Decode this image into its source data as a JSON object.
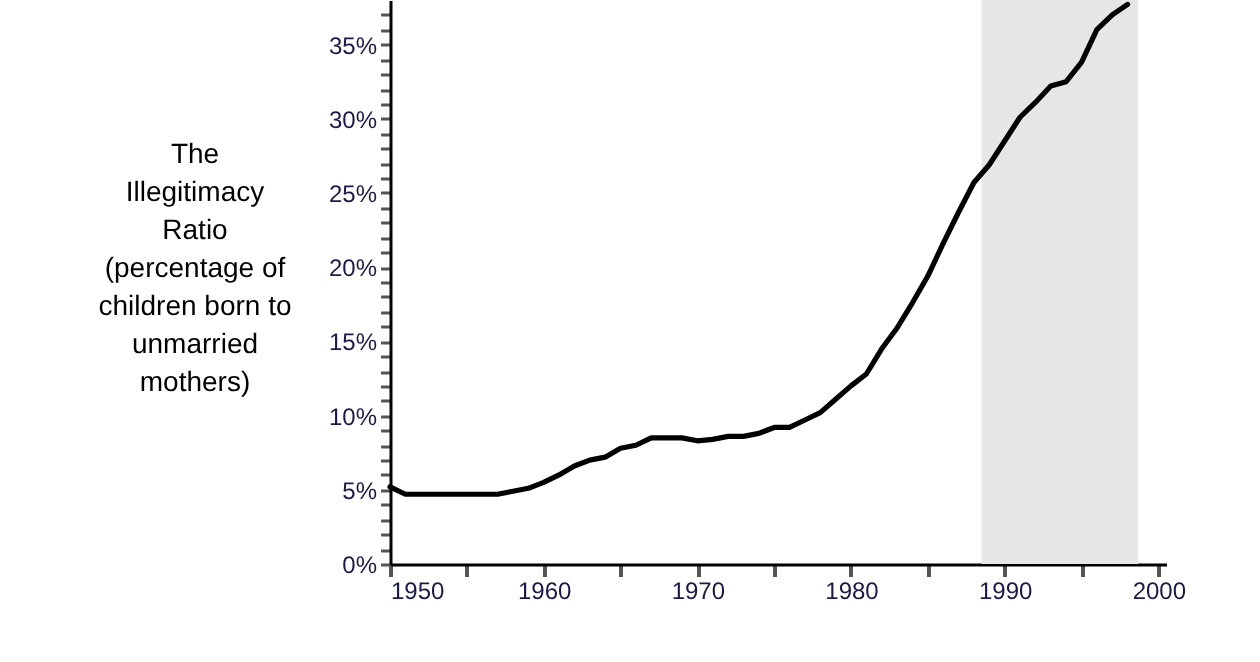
{
  "chart_data": {
    "type": "line",
    "ylabel": "The\nIllegitimacy\nRatio\n(percentage of\nchildren born to\nunmarried\nmothers)",
    "x": [
      1950,
      1951,
      1952,
      1953,
      1954,
      1955,
      1956,
      1957,
      1958,
      1959,
      1960,
      1961,
      1962,
      1963,
      1964,
      1965,
      1966,
      1967,
      1968,
      1969,
      1970,
      1971,
      1972,
      1973,
      1974,
      1975,
      1976,
      1977,
      1978,
      1979,
      1980,
      1981,
      1982,
      1983,
      1984,
      1985,
      1986,
      1987,
      1988,
      1989,
      1990,
      1991,
      1992,
      1993,
      1994,
      1995,
      1996,
      1997,
      1998
    ],
    "series": [
      {
        "color": "#000000",
        "values": [
          5.2,
          4.7,
          4.7,
          4.7,
          4.7,
          4.7,
          4.7,
          4.7,
          4.9,
          5.1,
          5.5,
          6.0,
          6.6,
          7.0,
          7.2,
          7.8,
          8.0,
          8.5,
          8.5,
          8.5,
          8.3,
          8.4,
          8.6,
          8.6,
          8.8,
          9.2,
          9.2,
          9.7,
          10.2,
          11.1,
          12.0,
          12.8,
          14.5,
          15.9,
          17.6,
          19.4,
          21.6,
          23.7,
          25.7,
          26.9,
          28.5,
          30.1,
          31.1,
          32.2,
          32.5,
          33.8,
          36.0,
          37.0,
          37.7
        ]
      }
    ],
    "xlim": [
      1950,
      2000.5
    ],
    "ylim": [
      0,
      38
    ],
    "xticks": [
      1950,
      {
        "value": 1955,
        "label": null
      },
      1960,
      {
        "value": 1965,
        "label": null
      },
      1970,
      {
        "value": 1975,
        "label": null
      },
      1980,
      {
        "value": 1985,
        "label": null
      },
      1990,
      {
        "value": 1995,
        "label": null
      },
      2000
    ],
    "yticks": [
      {
        "value": 0,
        "label": "0%"
      },
      {
        "value": 1,
        "label": null
      },
      {
        "value": 2,
        "label": null
      },
      {
        "value": 3,
        "label": null
      },
      {
        "value": 4,
        "label": null
      },
      {
        "value": 5,
        "label": "5%"
      },
      {
        "value": 6,
        "label": null
      },
      {
        "value": 7,
        "label": null
      },
      {
        "value": 8,
        "label": null
      },
      {
        "value": 9,
        "label": null
      },
      {
        "value": 10,
        "label": "10%"
      },
      {
        "value": 11,
        "label": null
      },
      {
        "value": 12,
        "label": null
      },
      {
        "value": 13,
        "label": null
      },
      {
        "value": 14,
        "label": null
      },
      {
        "value": 15,
        "label": "15%"
      },
      {
        "value": 16,
        "label": null
      },
      {
        "value": 17,
        "label": null
      },
      {
        "value": 18,
        "label": null
      },
      {
        "value": 19,
        "label": null
      },
      {
        "value": 20,
        "label": "20%"
      },
      {
        "value": 21,
        "label": null
      },
      {
        "value": 22,
        "label": null
      },
      {
        "value": 23,
        "label": null
      },
      {
        "value": 24,
        "label": null
      },
      {
        "value": 25,
        "label": "25%"
      },
      {
        "value": 26,
        "label": null
      },
      {
        "value": 27,
        "label": null
      },
      {
        "value": 28,
        "label": null
      },
      {
        "value": 29,
        "label": null
      },
      {
        "value": 30,
        "label": "30%"
      },
      {
        "value": 31,
        "label": null
      },
      {
        "value": 32,
        "label": null
      },
      {
        "value": 33,
        "label": null
      },
      {
        "value": 34,
        "label": null
      },
      {
        "value": 35,
        "label": "35%"
      },
      {
        "value": 36,
        "label": null
      },
      {
        "value": 37,
        "label": null
      }
    ],
    "bands": [
      {
        "axis": "x",
        "from": 1988.5,
        "to": 1998.7,
        "color": "#e6e6e6"
      }
    ],
    "grid": false,
    "line_style": "solid",
    "marker": "none"
  }
}
